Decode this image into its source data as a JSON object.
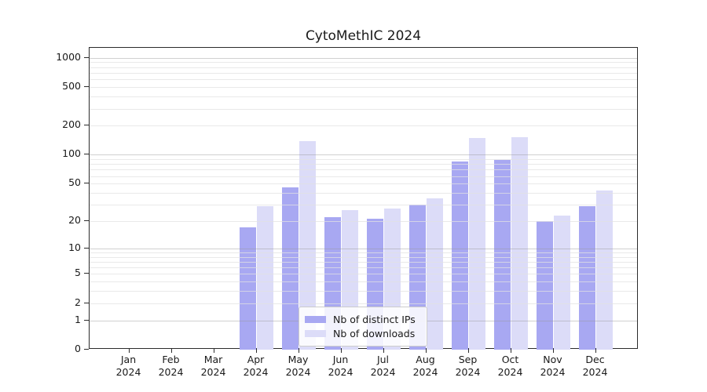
{
  "title": "CytoMethIC 2024",
  "chart_data": {
    "type": "bar",
    "title": "CytoMethIC 2024",
    "xlabel": "",
    "ylabel": "",
    "categories": [
      "Jan 2024",
      "Feb 2024",
      "Mar 2024",
      "Apr 2024",
      "May 2024",
      "Jun 2024",
      "Jul 2024",
      "Aug 2024",
      "Sep 2024",
      "Oct 2024",
      "Nov 2024",
      "Dec 2024"
    ],
    "series": [
      {
        "name": "Nb of distinct IPs",
        "color": "#a8a8f2",
        "values": [
          0,
          0,
          0,
          17,
          46,
          22,
          21,
          30,
          85,
          88,
          20,
          29
        ]
      },
      {
        "name": "Nb of downloads",
        "color": "#dcdcf8",
        "values": [
          0,
          0,
          0,
          29,
          138,
          26,
          27,
          35,
          148,
          152,
          23,
          42
        ]
      }
    ],
    "y_scale": "log1p",
    "ylim": [
      0,
      1266
    ],
    "y_ticks": [
      0,
      1,
      2,
      5,
      10,
      20,
      50,
      100,
      200,
      500,
      1000
    ],
    "y_major_gridlines": [
      1,
      10,
      100,
      1000
    ],
    "y_minor_gridlines": [
      2,
      3,
      4,
      5,
      6,
      7,
      8,
      9,
      20,
      30,
      40,
      50,
      60,
      70,
      80,
      90,
      200,
      300,
      400,
      500,
      600,
      700,
      800,
      900
    ],
    "grid": true,
    "legend_position": "lower center inside"
  }
}
